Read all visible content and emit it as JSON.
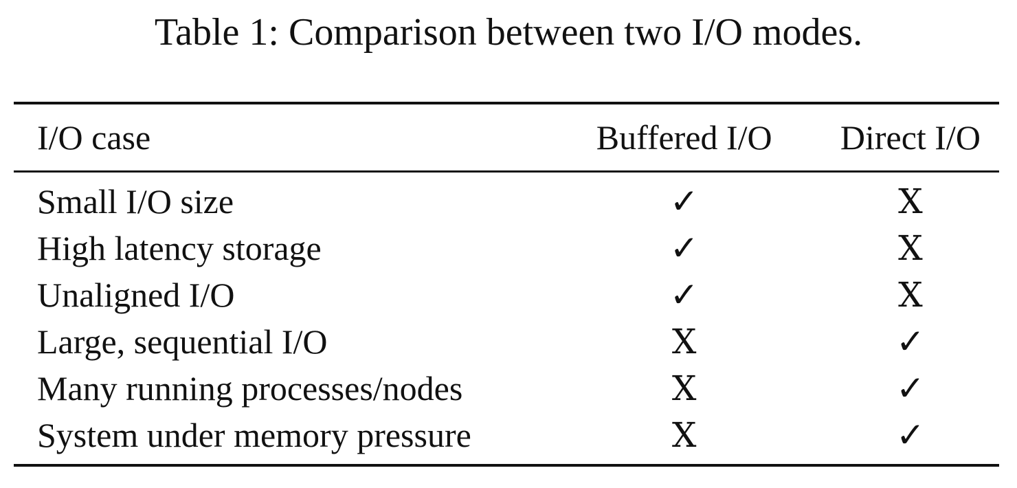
{
  "caption": "Table 1: Comparison between two I/O modes.",
  "table": {
    "headers": [
      "I/O case",
      "Buffered I/O",
      "Direct I/O"
    ],
    "rows": [
      [
        "Small I/O size",
        "✓",
        "X"
      ],
      [
        "High latency storage",
        "✓",
        "X"
      ],
      [
        "Unaligned I/O",
        "✓",
        "X"
      ],
      [
        "Large, sequential I/O",
        "X",
        "✓"
      ],
      [
        "Many running processes/nodes",
        "X",
        "✓"
      ],
      [
        "System under memory pressure",
        "X",
        "✓"
      ]
    ]
  }
}
